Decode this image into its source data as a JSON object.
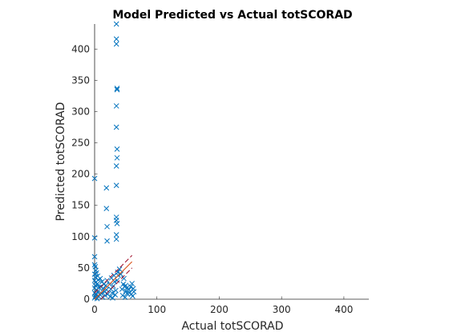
{
  "chart_data": {
    "type": "scatter",
    "title": "Model Predicted vs Actual totSCORAD",
    "xlabel": "Actual totSCORAD",
    "ylabel": "Predicted totSCORAD",
    "xlim": [
      0,
      440
    ],
    "ylim": [
      0,
      440
    ],
    "xticks": [
      0,
      100,
      200,
      300,
      400
    ],
    "yticks": [
      0,
      50,
      100,
      150,
      200,
      250,
      300,
      350,
      400
    ],
    "grid": false,
    "marker": "x",
    "series": [
      {
        "color": "#0072BD",
        "points": [
          [
            0,
            193
          ],
          [
            0,
            98
          ],
          [
            0,
            68
          ],
          [
            0,
            55
          ],
          [
            1,
            52
          ],
          [
            2,
            46
          ],
          [
            0,
            40
          ],
          [
            1,
            35
          ],
          [
            0,
            30
          ],
          [
            2,
            27
          ],
          [
            1,
            22
          ],
          [
            0,
            18
          ],
          [
            3,
            15
          ],
          [
            0,
            10
          ],
          [
            2,
            7
          ],
          [
            1,
            4
          ],
          [
            0,
            2
          ],
          [
            4,
            1
          ],
          [
            3,
            42
          ],
          [
            5,
            37
          ],
          [
            6,
            31
          ],
          [
            4,
            24
          ],
          [
            7,
            19
          ],
          [
            5,
            12
          ],
          [
            8,
            8
          ],
          [
            6,
            5
          ],
          [
            10,
            20
          ],
          [
            12,
            28
          ],
          [
            14,
            17
          ],
          [
            11,
            9
          ],
          [
            13,
            3
          ],
          [
            9,
            33
          ],
          [
            15,
            24
          ],
          [
            16,
            12
          ],
          [
            17,
            6
          ],
          [
            18,
            22
          ],
          [
            19,
            15
          ],
          [
            20,
            30
          ],
          [
            21,
            8
          ],
          [
            19,
            178
          ],
          [
            19,
            145
          ],
          [
            20,
            116
          ],
          [
            20,
            93
          ],
          [
            24,
            24
          ],
          [
            26,
            16
          ],
          [
            28,
            10
          ],
          [
            30,
            21
          ],
          [
            32,
            28
          ],
          [
            34,
            14
          ],
          [
            25,
            4
          ],
          [
            29,
            2
          ],
          [
            33,
            7
          ],
          [
            27,
            34
          ],
          [
            31,
            38
          ],
          [
            35,
            440
          ],
          [
            35,
            416
          ],
          [
            35,
            408
          ],
          [
            36,
            337
          ],
          [
            36,
            335
          ],
          [
            35,
            309
          ],
          [
            35,
            275
          ],
          [
            36,
            240
          ],
          [
            36,
            226
          ],
          [
            35,
            213
          ],
          [
            35,
            182
          ],
          [
            35,
            131
          ],
          [
            35,
            126
          ],
          [
            36,
            121
          ],
          [
            35,
            103
          ],
          [
            35,
            96
          ],
          [
            37,
            43
          ],
          [
            38,
            38
          ],
          [
            36,
            30
          ],
          [
            40,
            48
          ],
          [
            42,
            40
          ],
          [
            44,
            16
          ],
          [
            46,
            24
          ],
          [
            48,
            20
          ],
          [
            50,
            13
          ],
          [
            52,
            9
          ],
          [
            45,
            6
          ],
          [
            49,
            3
          ],
          [
            47,
            33
          ],
          [
            50,
            22
          ],
          [
            52,
            18
          ],
          [
            55,
            15
          ],
          [
            58,
            20
          ],
          [
            60,
            25
          ],
          [
            62,
            17
          ],
          [
            56,
            10
          ],
          [
            59,
            8
          ],
          [
            61,
            5
          ],
          [
            63,
            12
          ]
        ]
      }
    ],
    "reference_lines": [
      {
        "color": "#D95319",
        "style": "solid",
        "from": [
          0,
          0
        ],
        "to": [
          60,
          60
        ]
      },
      {
        "color": "#A2142F",
        "style": "dashed",
        "from": [
          0,
          10
        ],
        "to": [
          60,
          70
        ]
      },
      {
        "color": "#A2142F",
        "style": "dashed",
        "from": [
          10,
          0
        ],
        "to": [
          60,
          50
        ]
      }
    ]
  }
}
